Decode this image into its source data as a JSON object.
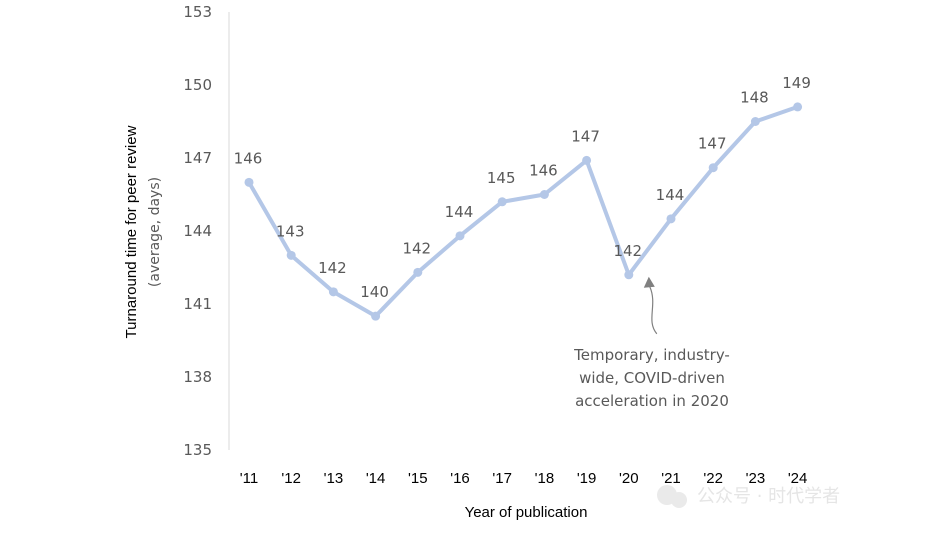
{
  "chart_data": {
    "type": "line",
    "categories": [
      "'11",
      "'12",
      "'13",
      "'14",
      "'15",
      "'16",
      "'17",
      "'18",
      "'19",
      "'20",
      "'21",
      "'22",
      "'23",
      "'24"
    ],
    "values": [
      146,
      143,
      142,
      140,
      142,
      144,
      145,
      146,
      147,
      142,
      144,
      147,
      148,
      149
    ],
    "plotted_values": [
      146.0,
      143.0,
      141.5,
      140.5,
      142.3,
      143.8,
      145.2,
      145.5,
      146.9,
      142.2,
      144.5,
      146.6,
      148.5,
      149.1
    ],
    "data_labels": [
      "146",
      "143",
      "142",
      "140",
      "142",
      "144",
      "145",
      "146",
      "147",
      "142",
      "144",
      "147",
      "148",
      "149"
    ],
    "y_ticks": [
      "135",
      "138",
      "141",
      "144",
      "147",
      "150",
      "153"
    ],
    "ylim": [
      135,
      153
    ],
    "xlabel": "Year of publication",
    "ylabel": "Turnaround time for peer review",
    "ylabel_sub": "(average, days)",
    "grid": false,
    "line_color": "#b4c7e7",
    "annotation": {
      "lines": [
        "Temporary, industry-",
        "wide, COVID-driven",
        "acceleration in 2020"
      ],
      "target_category": "'20",
      "arrow_color": "#808080"
    }
  },
  "watermark": {
    "text": "公众号 · 时代学者"
  }
}
